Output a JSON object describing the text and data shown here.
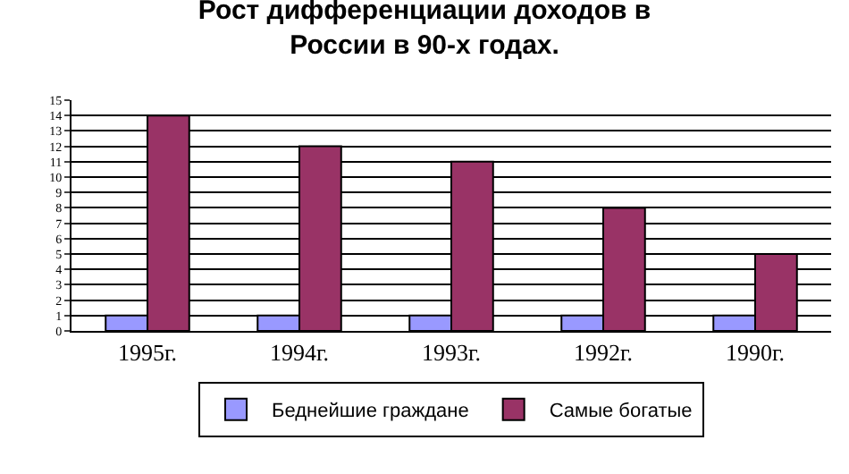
{
  "chart_data": {
    "type": "bar",
    "title": "Рост дифференциации доходов в\nРоссии в 90-х годах.",
    "categories": [
      "1995г.",
      "1994г.",
      "1993г.",
      "1992г.",
      "1990г."
    ],
    "series": [
      {
        "name": "Беднейшие граждане",
        "color": "#9999ff",
        "values": [
          1,
          1,
          1,
          1,
          1
        ]
      },
      {
        "name": "Самые богатые",
        "color": "#993366",
        "values": [
          14,
          12,
          11,
          8,
          5
        ]
      }
    ],
    "ylim": [
      0,
      15
    ],
    "yticks": [
      0,
      1,
      2,
      3,
      4,
      5,
      6,
      7,
      8,
      9,
      10,
      11,
      12,
      13,
      14,
      15
    ],
    "grid": "y",
    "legend": "bottom"
  }
}
